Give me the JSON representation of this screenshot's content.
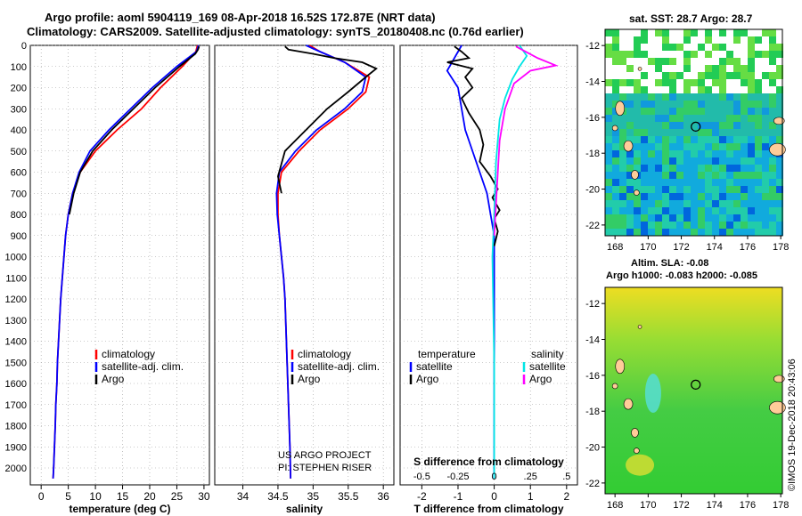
{
  "header": {
    "title_line1": "Argo profile: aoml 5904119_169 08-Apr-2018 16.52S 172.87E (NRT data)",
    "title_line2": "Climatology: CARS2009. Satellite-adjusted climatology: synTS_20180408.nc (0.76d earlier)"
  },
  "colors": {
    "climatology": "#ff0000",
    "satellite_adj": "#0000ff",
    "argo": "#000000",
    "satellite_salinity": "#00e5e5",
    "argo_salinity": "#ff00ff"
  },
  "credit": {
    "line1": "US ARGO PROJECT",
    "line2": "PI: STEPHEN RISER"
  },
  "watermark": "©IMOS 19-Dec-2018 20:43:06",
  "chart_data": [
    {
      "type": "line",
      "id": "temperature",
      "xlabel": "temperature (deg C)",
      "ylabel": "",
      "xlim": [
        -2,
        31
      ],
      "ylim": [
        2080,
        0
      ],
      "xticks": [
        0,
        5,
        10,
        15,
        20,
        25,
        30
      ],
      "yticks": [
        0,
        100,
        200,
        300,
        400,
        500,
        600,
        700,
        800,
        900,
        1000,
        1100,
        1200,
        1300,
        1400,
        1500,
        1600,
        1700,
        1800,
        1900,
        2000
      ],
      "legend": {
        "placement": "lower-middle",
        "entries": [
          "climatology",
          "satellite-adj. clim.",
          "Argo"
        ]
      },
      "series": [
        {
          "name": "climatology",
          "color": "#ff0000",
          "x": [
            28.8,
            28.5,
            26.0,
            22.0,
            18.5,
            14.0,
            10.0,
            7.2,
            5.8,
            5.0,
            4.5,
            4.2,
            3.9,
            3.6,
            3.4,
            3.2,
            3.0,
            2.9,
            2.7,
            2.6,
            2.45,
            2.3,
            2.2
          ],
          "y": [
            0,
            30,
            100,
            200,
            300,
            400,
            500,
            600,
            700,
            800,
            900,
            1000,
            1100,
            1200,
            1300,
            1400,
            1500,
            1600,
            1700,
            1800,
            1900,
            2000,
            2050
          ]
        },
        {
          "name": "satellite-adj. clim.",
          "color": "#0000ff",
          "x": [
            29.0,
            28.6,
            25.0,
            20.5,
            16.5,
            12.5,
            9.0,
            7.0,
            5.8,
            5.0,
            4.5,
            4.2,
            3.9,
            3.6,
            3.4,
            3.2,
            3.0,
            2.9,
            2.7,
            2.6,
            2.45,
            2.3,
            2.2
          ],
          "y": [
            0,
            30,
            100,
            200,
            300,
            400,
            500,
            600,
            700,
            800,
            900,
            1000,
            1100,
            1200,
            1300,
            1400,
            1500,
            1600,
            1700,
            1800,
            1900,
            2000,
            2050
          ]
        },
        {
          "name": "Argo",
          "color": "#000000",
          "x": [
            29.1,
            28.9,
            28.4,
            25.5,
            21.0,
            17.0,
            13.0,
            9.5,
            7.2,
            6.0,
            5.2
          ],
          "y": [
            5,
            20,
            40,
            100,
            200,
            300,
            400,
            500,
            600,
            700,
            800
          ]
        }
      ]
    },
    {
      "type": "line",
      "id": "salinity",
      "xlabel": "salinity",
      "ylabel": "",
      "xlim": [
        33.6,
        36.15
      ],
      "ylim": [
        2080,
        0
      ],
      "xticks": [
        34,
        34.5,
        35,
        35.5,
        36
      ],
      "legend": {
        "placement": "lower-right",
        "entries": [
          "climatology",
          "satellite-adj. clim.",
          "Argo"
        ]
      },
      "series": [
        {
          "name": "climatology",
          "color": "#ff0000",
          "x": [
            34.95,
            35.1,
            35.45,
            35.8,
            35.75,
            35.5,
            35.1,
            34.8,
            34.55,
            34.5,
            34.5,
            34.52,
            34.55,
            34.58,
            34.6,
            34.61,
            34.62,
            34.63,
            34.64,
            34.65,
            34.66,
            34.67,
            34.68
          ],
          "y": [
            0,
            30,
            80,
            150,
            220,
            300,
            400,
            500,
            600,
            700,
            800,
            900,
            1000,
            1100,
            1200,
            1300,
            1400,
            1500,
            1600,
            1700,
            1800,
            1900,
            2050
          ]
        },
        {
          "name": "satellite-adj. clim.",
          "color": "#0000ff",
          "x": [
            34.9,
            35.1,
            35.45,
            35.75,
            35.7,
            35.45,
            35.05,
            34.75,
            34.52,
            34.48,
            34.49,
            34.52,
            34.55,
            34.58,
            34.6,
            34.61,
            34.62,
            34.63,
            34.64,
            34.65,
            34.66,
            34.67,
            34.68
          ],
          "y": [
            0,
            30,
            80,
            150,
            220,
            300,
            400,
            500,
            600,
            700,
            800,
            900,
            1000,
            1100,
            1200,
            1300,
            1400,
            1500,
            1600,
            1700,
            1800,
            1900,
            2050
          ]
        },
        {
          "name": "Argo",
          "color": "#000000",
          "x": [
            34.6,
            34.65,
            35.0,
            35.3,
            35.7,
            35.9,
            35.75,
            35.5,
            35.2,
            34.9,
            34.6,
            34.55,
            34.5,
            34.55
          ],
          "y": [
            5,
            20,
            40,
            60,
            80,
            110,
            150,
            220,
            300,
            400,
            500,
            560,
            620,
            700
          ]
        }
      ]
    },
    {
      "type": "line",
      "id": "differences",
      "xlabel": "T difference from climatology",
      "xlabel_top": "S difference from climatology",
      "xlim": [
        -2.6,
        2.3
      ],
      "ylim": [
        2080,
        0
      ],
      "xticks": [
        -2,
        -1,
        0,
        1,
        2
      ],
      "xticks_top": [
        -0.5,
        -0.25,
        0,
        0.25,
        0.5
      ],
      "legend": {
        "placement": "lower",
        "left_header": "temperature",
        "right_header": "salinity",
        "entries_left": [
          "satellite",
          "Argo"
        ],
        "entries_right": [
          "satellite",
          "Argo"
        ]
      },
      "series": [
        {
          "name": "satellite",
          "group": "temperature",
          "color": "#0000ff",
          "x": [
            -0.9,
            -1.1,
            -1.3,
            -1.0,
            -0.9,
            -0.8,
            -0.6,
            -0.4,
            -0.2,
            -0.1,
            0.0,
            0.0
          ],
          "y": [
            0,
            60,
            120,
            200,
            300,
            400,
            500,
            600,
            700,
            800,
            900,
            2050
          ]
        },
        {
          "name": "Argo",
          "group": "temperature",
          "color": "#000000",
          "x": [
            -1.1,
            -0.9,
            -0.7,
            -1.3,
            -0.6,
            -0.8,
            -0.6,
            -0.9,
            -0.7,
            -0.4,
            -0.3,
            -0.4,
            -0.1,
            0.1,
            -0.05,
            0.15,
            0.0,
            0.1,
            0.0
          ],
          "y": [
            5,
            30,
            60,
            80,
            110,
            150,
            200,
            250,
            320,
            400,
            470,
            550,
            620,
            680,
            720,
            780,
            820,
            880,
            950
          ]
        },
        {
          "name": "satellite",
          "group": "salinity",
          "color": "#00e5e5",
          "x": [
            0.7,
            0.9,
            0.7,
            0.5,
            0.3,
            0.15,
            0.1,
            0.05,
            0.03,
            0.0,
            -0.05,
            0.0,
            0.0
          ],
          "y": [
            0,
            50,
            100,
            160,
            250,
            350,
            450,
            550,
            650,
            800,
            1000,
            1500,
            2050
          ]
        },
        {
          "name": "Argo",
          "group": "salinity",
          "color": "#ff00ff",
          "x": [
            0.6,
            1.2,
            1.7,
            1.0,
            0.55,
            0.3,
            0.15,
            0.1,
            0.05,
            0.0
          ],
          "y": [
            5,
            60,
            95,
            120,
            180,
            300,
            450,
            600,
            750,
            900
          ]
        }
      ]
    },
    {
      "type": "heatmap",
      "id": "sat-sst-map",
      "title": "sat. SST: 28.7 Argo: 28.7",
      "xlim": [
        167.4,
        178.1
      ],
      "ylim": [
        -22.6,
        -11.1
      ],
      "xticks": [
        168,
        170,
        172,
        174,
        176,
        178
      ],
      "yticks": [
        -12,
        -14,
        -16,
        -18,
        -20,
        -22
      ],
      "argo_position": {
        "lon": 172.87,
        "lat": -16.52
      }
    },
    {
      "type": "heatmap",
      "id": "altimetry-map",
      "title": "Altim. SLA: -0.08",
      "subtitle": "Argo h1000: -0.083 h2000: -0.085",
      "xlim": [
        167.4,
        178.1
      ],
      "ylim": [
        -22.6,
        -11.1
      ],
      "xticks": [
        168,
        170,
        172,
        174,
        176,
        178
      ],
      "yticks": [
        -12,
        -14,
        -16,
        -18,
        -20,
        -22
      ],
      "argo_position": {
        "lon": 172.87,
        "lat": -16.52
      }
    }
  ]
}
